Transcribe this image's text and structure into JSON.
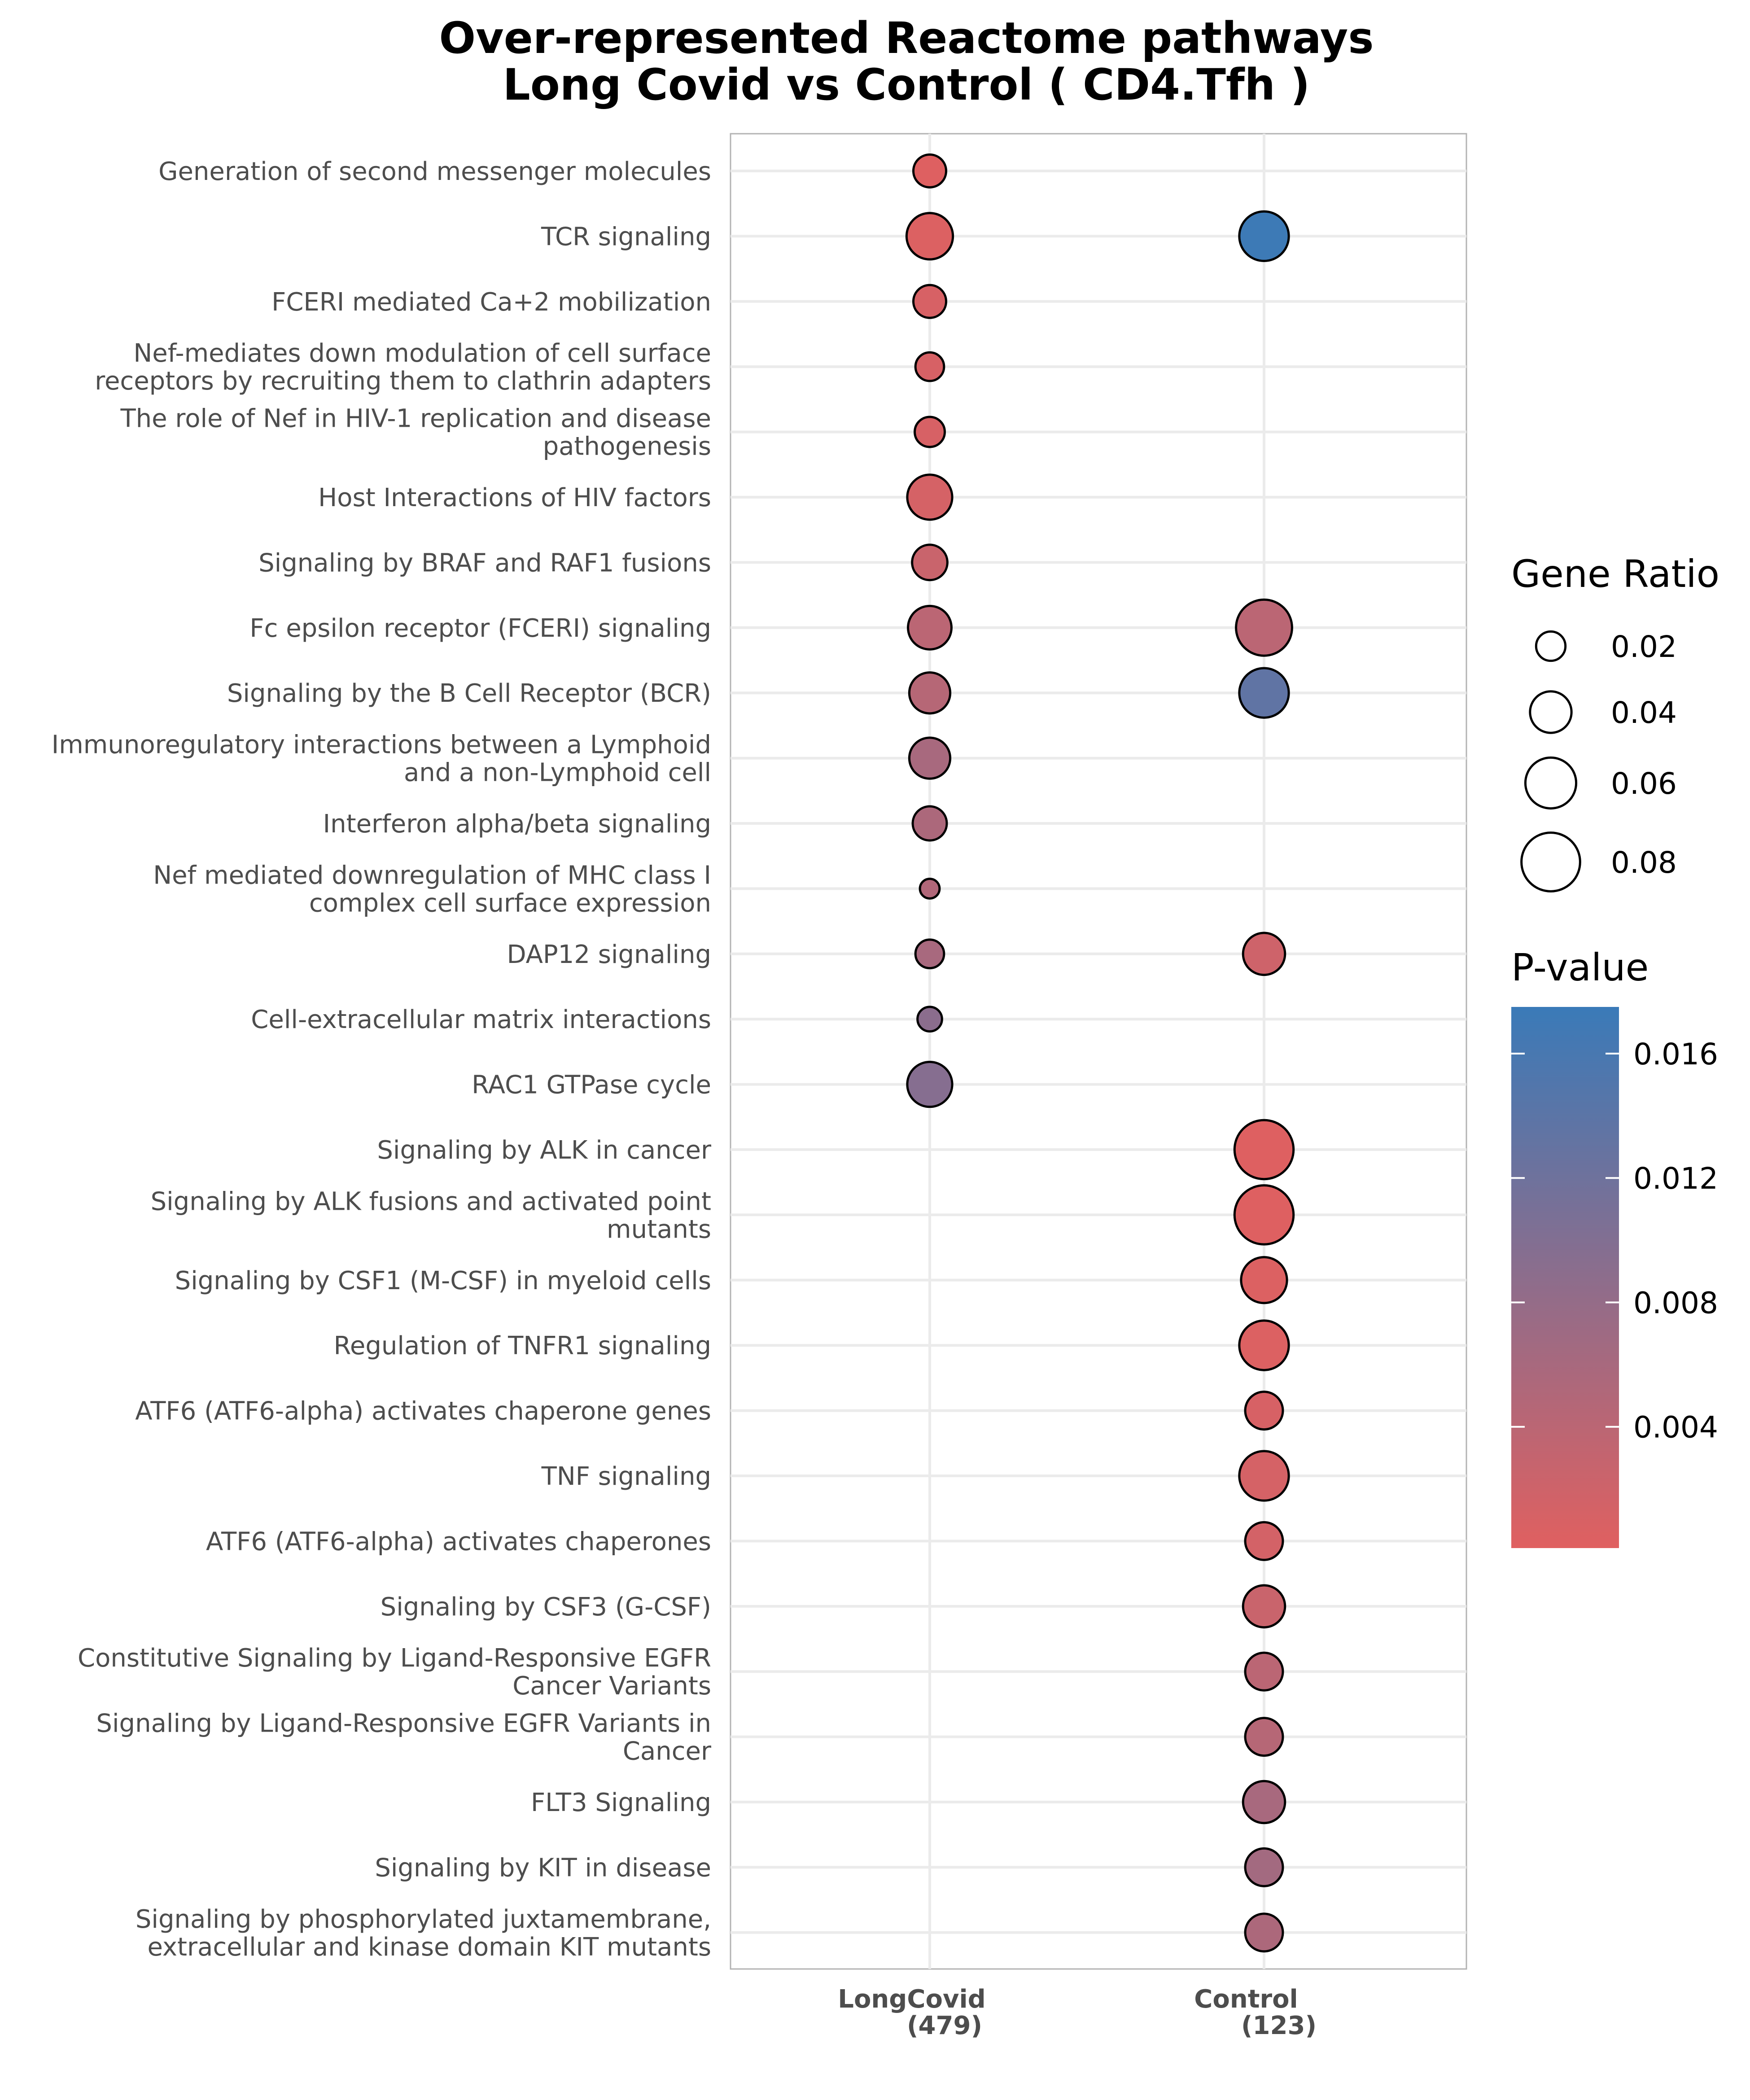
{
  "chart_data": {
    "type": "scatter",
    "title": "Over-represented Reactome pathways",
    "subtitle": "Long Covid vs Control ( CD4.Tfh )",
    "x_categories": [
      {
        "label": "LongCovid",
        "count": "(479)"
      },
      {
        "label": "Control",
        "count": "(123)"
      }
    ],
    "pathways": [
      "Generation of second messenger molecules",
      "TCR signaling",
      "FCERI mediated Ca+2 mobilization",
      "Nef-mediates down modulation of cell surface receptors by recruiting them to clathrin adapters",
      "The role of Nef in HIV-1 replication and disease pathogenesis",
      "Host Interactions of HIV factors",
      "Signaling by BRAF and RAF1 fusions",
      "Fc epsilon receptor (FCERI) signaling",
      "Signaling by the B Cell Receptor (BCR)",
      "Immunoregulatory interactions between a Lymphoid and a non-Lymphoid cell",
      "Interferon alpha/beta signaling",
      "Nef mediated downregulation of MHC class I complex cell surface expression",
      "DAP12 signaling",
      "Cell-extracellular matrix interactions",
      "RAC1 GTPase cycle",
      "Signaling by ALK in cancer",
      "Signaling by ALK fusions and activated point mutants",
      "Signaling by CSF1 (M-CSF) in myeloid cells",
      "Regulation of TNFR1 signaling",
      "ATF6 (ATF6-alpha) activates chaperone genes",
      "TNF signaling",
      "ATF6 (ATF6-alpha) activates chaperones",
      "Signaling by CSF3 (G-CSF)",
      "Constitutive Signaling by Ligand-Responsive EGFR Cancer Variants",
      "Signaling by Ligand-Responsive EGFR Variants in Cancer",
      "FLT3 Signaling",
      "Signaling by KIT in disease",
      "Signaling by phosphorylated juxtamembrane, extracellular and kinase domain KIT mutants"
    ],
    "pathway_label_lines": [
      [
        "Generation of second messenger molecules"
      ],
      [
        "TCR signaling"
      ],
      [
        "FCERI mediated Ca+2 mobilization"
      ],
      [
        "Nef-mediates down modulation of cell surface",
        "receptors by recruiting them to clathrin adapters"
      ],
      [
        "The role of Nef in HIV-1 replication and disease",
        "pathogenesis"
      ],
      [
        "Host Interactions of HIV factors"
      ],
      [
        "Signaling by BRAF and RAF1 fusions"
      ],
      [
        "Fc epsilon receptor (FCERI) signaling"
      ],
      [
        "Signaling by the B Cell Receptor (BCR)"
      ],
      [
        "Immunoregulatory interactions between a Lymphoid",
        "and a non-Lymphoid cell"
      ],
      [
        "Interferon alpha/beta signaling"
      ],
      [
        "Nef mediated downregulation of MHC class I",
        "complex cell surface expression"
      ],
      [
        "DAP12 signaling"
      ],
      [
        "Cell-extracellular matrix interactions"
      ],
      [
        "RAC1 GTPase cycle"
      ],
      [
        "Signaling by ALK in cancer"
      ],
      [
        "Signaling by ALK fusions and activated point",
        "mutants"
      ],
      [
        "Signaling by CSF1 (M-CSF) in myeloid cells"
      ],
      [
        "Regulation of TNFR1 signaling"
      ],
      [
        "ATF6 (ATF6-alpha) activates chaperone genes"
      ],
      [
        "TNF signaling"
      ],
      [
        "ATF6 (ATF6-alpha) activates chaperones"
      ],
      [
        "Signaling by CSF3 (G-CSF)"
      ],
      [
        "Constitutive Signaling by Ligand-Responsive EGFR",
        "Cancer Variants"
      ],
      [
        "Signaling by Ligand-Responsive EGFR Variants in",
        "Cancer"
      ],
      [
        "FLT3 Signaling"
      ],
      [
        "Signaling by KIT in disease"
      ],
      [
        "Signaling by phosphorylated juxtamembrane,",
        "extracellular and kinase domain KIT mutants"
      ]
    ],
    "points": [
      {
        "group": "LongCovid",
        "pathway": "Generation of second messenger molecules",
        "gene_ratio": 0.025,
        "p_value": 0.0003
      },
      {
        "group": "LongCovid",
        "pathway": "TCR signaling",
        "gene_ratio": 0.05,
        "p_value": 0.0005
      },
      {
        "group": "LongCovid",
        "pathway": "FCERI mediated Ca+2 mobilization",
        "gene_ratio": 0.025,
        "p_value": 0.001
      },
      {
        "group": "LongCovid",
        "pathway": "Nef-mediates down modulation of cell surface receptors by recruiting them to clathrin adapters",
        "gene_ratio": 0.019,
        "p_value": 0.001
      },
      {
        "group": "LongCovid",
        "pathway": "The role of Nef in HIV-1 replication and disease pathogenesis",
        "gene_ratio": 0.021,
        "p_value": 0.001
      },
      {
        "group": "LongCovid",
        "pathway": "Host Interactions of HIV factors",
        "gene_ratio": 0.047,
        "p_value": 0.0013
      },
      {
        "group": "LongCovid",
        "pathway": "Signaling by BRAF and RAF1 fusions",
        "gene_ratio": 0.029,
        "p_value": 0.0025
      },
      {
        "group": "LongCovid",
        "pathway": "Fc epsilon receptor (FCERI) signaling",
        "gene_ratio": 0.044,
        "p_value": 0.004
      },
      {
        "group": "LongCovid",
        "pathway": "Signaling by the B Cell Receptor (BCR)",
        "gene_ratio": 0.039,
        "p_value": 0.0045
      },
      {
        "group": "LongCovid",
        "pathway": "Immunoregulatory interactions between a Lymphoid and a non-Lymphoid cell",
        "gene_ratio": 0.039,
        "p_value": 0.006
      },
      {
        "group": "LongCovid",
        "pathway": "Interferon alpha/beta signaling",
        "gene_ratio": 0.027,
        "p_value": 0.0055
      },
      {
        "group": "LongCovid",
        "pathway": "Nef mediated downregulation of MHC class I complex cell surface expression",
        "gene_ratio": 0.009,
        "p_value": 0.005
      },
      {
        "group": "LongCovid",
        "pathway": "DAP12 signaling",
        "gene_ratio": 0.019,
        "p_value": 0.006
      },
      {
        "group": "LongCovid",
        "pathway": "Cell-extracellular matrix interactions",
        "gene_ratio": 0.014,
        "p_value": 0.009
      },
      {
        "group": "LongCovid",
        "pathway": "RAC1 GTPase cycle",
        "gene_ratio": 0.047,
        "p_value": 0.0095
      },
      {
        "group": "Control",
        "pathway": "TCR signaling",
        "gene_ratio": 0.057,
        "p_value": 0.0172
      },
      {
        "group": "Control",
        "pathway": "Fc epsilon receptor (FCERI) signaling",
        "gene_ratio": 0.073,
        "p_value": 0.004
      },
      {
        "group": "Control",
        "pathway": "Signaling by the B Cell Receptor (BCR)",
        "gene_ratio": 0.057,
        "p_value": 0.0135
      },
      {
        "group": "Control",
        "pathway": "DAP12 signaling",
        "gene_ratio": 0.041,
        "p_value": 0.002
      },
      {
        "group": "Control",
        "pathway": "Signaling by ALK in cancer",
        "gene_ratio": 0.081,
        "p_value": 0.0003
      },
      {
        "group": "Control",
        "pathway": "Signaling by ALK fusions and activated point mutants",
        "gene_ratio": 0.081,
        "p_value": 0.0003
      },
      {
        "group": "Control",
        "pathway": "Signaling by CSF1 (M-CSF) in myeloid cells",
        "gene_ratio": 0.049,
        "p_value": 0.0005
      },
      {
        "group": "Control",
        "pathway": "Regulation of TNFR1 signaling",
        "gene_ratio": 0.057,
        "p_value": 0.0005
      },
      {
        "group": "Control",
        "pathway": "ATF6 (ATF6-alpha) activates chaperone genes",
        "gene_ratio": 0.033,
        "p_value": 0.001
      },
      {
        "group": "Control",
        "pathway": "TNF signaling",
        "gene_ratio": 0.057,
        "p_value": 0.0013
      },
      {
        "group": "Control",
        "pathway": "ATF6 (ATF6-alpha) activates chaperones",
        "gene_ratio": 0.033,
        "p_value": 0.0015
      },
      {
        "group": "Control",
        "pathway": "Signaling by CSF3 (G-CSF)",
        "gene_ratio": 0.041,
        "p_value": 0.0025
      },
      {
        "group": "Control",
        "pathway": "Constitutive Signaling by Ligand-Responsive EGFR Cancer Variants",
        "gene_ratio": 0.033,
        "p_value": 0.004
      },
      {
        "group": "Control",
        "pathway": "Signaling by Ligand-Responsive EGFR Variants in Cancer",
        "gene_ratio": 0.033,
        "p_value": 0.0045
      },
      {
        "group": "Control",
        "pathway": "FLT3 Signaling",
        "gene_ratio": 0.041,
        "p_value": 0.006
      },
      {
        "group": "Control",
        "pathway": "Signaling by KIT in disease",
        "gene_ratio": 0.033,
        "p_value": 0.0065
      },
      {
        "group": "Control",
        "pathway": "Signaling by phosphorylated juxtamembrane, extracellular and kinase domain KIT mutants",
        "gene_ratio": 0.033,
        "p_value": 0.0055
      }
    ],
    "size_legend": {
      "title": "Gene Ratio",
      "breaks": [
        0.02,
        0.04,
        0.06,
        0.08
      ],
      "labels": [
        "0.02",
        "0.04",
        "0.06",
        "0.08"
      ]
    },
    "color_legend": {
      "title": "P-value",
      "low_color": "#e06060",
      "high_color": "#3a7ab8",
      "min": 0.0001,
      "max": 0.0175,
      "breaks": [
        0.004,
        0.008,
        0.012,
        0.016
      ],
      "labels": [
        "0.004",
        "0.008",
        "0.012",
        "0.016"
      ]
    },
    "grid": true,
    "legend_position": "right"
  }
}
